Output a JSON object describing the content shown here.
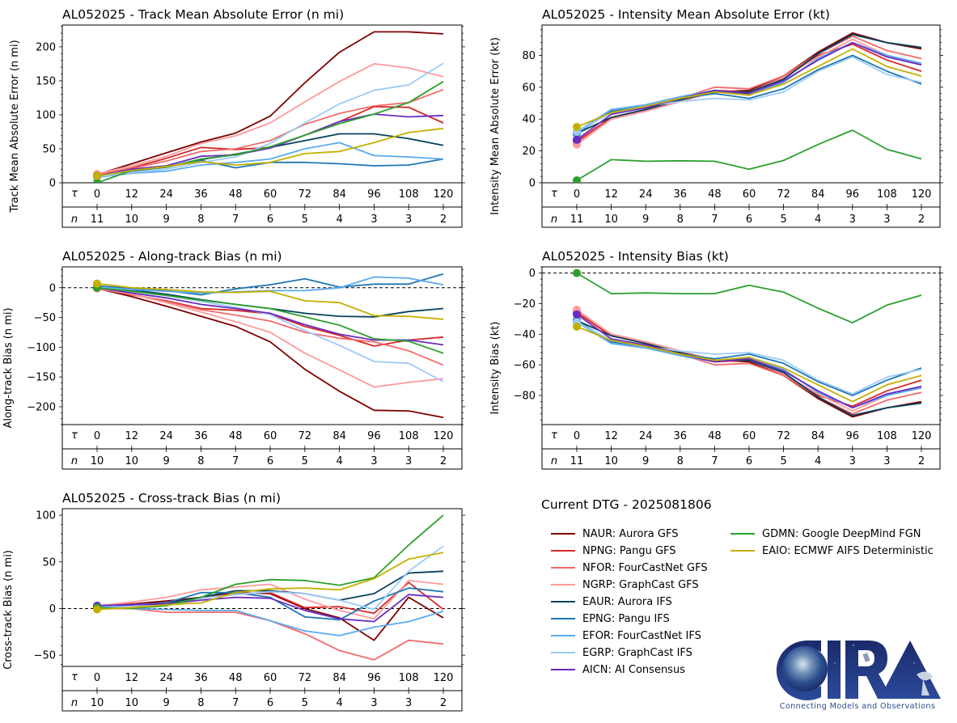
{
  "figure": {
    "storm_id": "AL052025",
    "dtg_label": "Current DTG - 2025081806",
    "tau_symbol": "τ",
    "n_symbol": "n",
    "logo": {
      "name": "CIRA",
      "tagline": "Connecting Models and Observations"
    }
  },
  "models": [
    {
      "id": "NAUR",
      "label": "NAUR: Aurora GFS",
      "color": "#7f0000"
    },
    {
      "id": "NPNG",
      "label": "NPNG: Pangu GFS",
      "color": "#d62728"
    },
    {
      "id": "NFOR",
      "label": "NFOR: FourCastNet GFS",
      "color": "#f26a6a"
    },
    {
      "id": "NGRP",
      "label": "NGRP: GraphCast GFS",
      "color": "#ff9a9a"
    },
    {
      "id": "EAUR",
      "label": "EAUR: Aurora IFS",
      "color": "#08415c"
    },
    {
      "id": "EPNG",
      "label": "EPNG: Pangu IFS",
      "color": "#1f77b4"
    },
    {
      "id": "EFOR",
      "label": "EFOR: FourCastNet IFS",
      "color": "#5aaaf0"
    },
    {
      "id": "EGRP",
      "label": "EGRP: GraphCast IFS",
      "color": "#9ccbfa"
    },
    {
      "id": "AICN",
      "label": "AICN: AI Consensus",
      "color": "#6a2bc2"
    },
    {
      "id": "GDMN",
      "label": "GDMN: Google DeepMind FGN",
      "color": "#2ca02c"
    },
    {
      "id": "EAIO",
      "label": "EAIO: ECMWF AIFS Deterministic",
      "color": "#c4b000"
    }
  ],
  "chart_data": [
    {
      "type": "line",
      "title": "AL052025 - Track Mean Absolute Error (n mi)",
      "xlabel": "τ (h)",
      "ylabel": "Track Mean Absolute Error (n mi)",
      "x": [
        0,
        12,
        24,
        36,
        48,
        60,
        72,
        84,
        96,
        108,
        120
      ],
      "n": [
        11,
        10,
        9,
        8,
        7,
        6,
        5,
        4,
        3,
        3,
        2
      ],
      "ylim": [
        0,
        232
      ],
      "yticks": [
        0,
        50,
        100,
        150,
        200
      ],
      "zero_line": false,
      "series": [
        {
          "name": "NAUR",
          "values": [
            12,
            28,
            44,
            60,
            73,
            98,
            147,
            192,
            222,
            222,
            219
          ]
        },
        {
          "name": "NPNG",
          "values": [
            11,
            22,
            36,
            52,
            49,
            52,
            70,
            90,
            112,
            111,
            88
          ]
        },
        {
          "name": "NFOR",
          "values": [
            12,
            21,
            32,
            46,
            50,
            62,
            86,
            102,
            113,
            118,
            137
          ]
        },
        {
          "name": "NGRP",
          "values": [
            13,
            25,
            39,
            58,
            69,
            88,
            119,
            149,
            175,
            169,
            156
          ]
        },
        {
          "name": "EAUR",
          "values": [
            10,
            18,
            23,
            34,
            42,
            52,
            62,
            72,
            72,
            65,
            55
          ]
        },
        {
          "name": "EPNG",
          "values": [
            9,
            17,
            23,
            33,
            22,
            30,
            30,
            28,
            25,
            26,
            35
          ]
        },
        {
          "name": "EFOR",
          "values": [
            8,
            14,
            17,
            26,
            30,
            35,
            50,
            59,
            40,
            38,
            35
          ]
        },
        {
          "name": "EGRP",
          "values": [
            9,
            15,
            20,
            30,
            38,
            58,
            88,
            116,
            136,
            144,
            176
          ]
        },
        {
          "name": "AICN",
          "values": [
            10,
            20,
            25,
            39,
            41,
            51,
            70,
            90,
            101,
            97,
            99
          ]
        },
        {
          "name": "GDMN",
          "values": [
            0,
            18,
            23,
            35,
            41,
            53,
            70,
            87,
            101,
            118,
            149
          ]
        },
        {
          "name": "EAIO",
          "values": [
            10,
            18,
            24,
            31,
            26,
            30,
            43,
            46,
            59,
            74,
            80
          ]
        }
      ]
    },
    {
      "type": "line",
      "title": "AL052025 - Intensity Mean Absolute Error (kt)",
      "xlabel": "τ (h)",
      "ylabel": "Intensity Mean Absolute Error (kt)",
      "x": [
        0,
        12,
        24,
        36,
        48,
        60,
        72,
        84,
        96,
        108,
        120
      ],
      "n": [
        11,
        10,
        9,
        8,
        7,
        6,
        5,
        4,
        3,
        3,
        2
      ],
      "ylim": [
        0,
        99
      ],
      "yticks": [
        0,
        20,
        40,
        60,
        80
      ],
      "zero_line": false,
      "series": [
        {
          "name": "NAUR",
          "values": [
            25,
            40,
            45,
            51,
            57,
            58,
            67,
            82,
            94,
            88,
            84
          ]
        },
        {
          "name": "NPNG",
          "values": [
            26,
            41,
            46,
            52,
            58,
            57,
            66,
            80,
            87,
            77,
            70
          ]
        },
        {
          "name": "NFOR",
          "values": [
            25,
            40,
            46,
            53,
            60,
            59,
            67,
            81,
            92,
            83,
            78
          ]
        },
        {
          "name": "NGRP",
          "values": [
            24,
            40,
            45,
            51,
            57,
            57,
            66,
            79,
            90,
            80,
            74
          ]
        },
        {
          "name": "EAUR",
          "values": [
            31,
            41,
            46,
            52,
            57,
            57,
            65,
            81,
            93,
            88,
            85
          ]
        },
        {
          "name": "EPNG",
          "values": [
            31,
            45,
            48,
            53,
            56,
            53,
            59,
            71,
            80,
            70,
            62
          ]
        },
        {
          "name": "EFOR",
          "values": [
            32,
            46,
            49,
            54,
            58,
            55,
            63,
            78,
            88,
            80,
            75
          ]
        },
        {
          "name": "EGRP",
          "values": [
            32,
            44,
            48,
            51,
            53,
            52,
            57,
            70,
            79,
            68,
            63
          ]
        },
        {
          "name": "AICN",
          "values": [
            27,
            43,
            47,
            53,
            58,
            56,
            64,
            77,
            88,
            79,
            74
          ]
        },
        {
          "name": "GDMN",
          "values": [
            1.5,
            14.5,
            13.5,
            13.8,
            13.5,
            8.5,
            14,
            24,
            33,
            21,
            15
          ]
        },
        {
          "name": "EAIO",
          "values": [
            35,
            44,
            48,
            53,
            57,
            55,
            62,
            73,
            84,
            73,
            67
          ]
        }
      ]
    },
    {
      "type": "line",
      "title": "AL052025 - Along-track Bias (n mi)",
      "xlabel": "τ (h)",
      "ylabel": "Along-track Bias (n mi)",
      "x": [
        0,
        12,
        24,
        36,
        48,
        60,
        72,
        84,
        96,
        108,
        120
      ],
      "n": [
        10,
        10,
        9,
        8,
        7,
        6,
        5,
        4,
        3,
        3,
        2
      ],
      "ylim": [
        -230,
        35
      ],
      "yticks": [
        -200,
        -150,
        -100,
        -50,
        0
      ],
      "zero_line": true,
      "series": [
        {
          "name": "NAUR",
          "values": [
            -1,
            -15,
            -31,
            -48,
            -65,
            -91,
            -137,
            -174,
            -206,
            -207,
            -218
          ]
        },
        {
          "name": "NPNG",
          "values": [
            -1,
            -12,
            -22,
            -35,
            -38,
            -44,
            -65,
            -80,
            -98,
            -88,
            -83
          ]
        },
        {
          "name": "NFOR",
          "values": [
            -1,
            -11,
            -23,
            -37,
            -46,
            -56,
            -75,
            -85,
            -91,
            -106,
            -130
          ]
        },
        {
          "name": "NGRP",
          "values": [
            -1,
            -11,
            -25,
            -41,
            -57,
            -75,
            -110,
            -138,
            -167,
            -159,
            -153
          ]
        },
        {
          "name": "EAUR",
          "values": [
            2,
            -4,
            -11,
            -20,
            -28,
            -35,
            -43,
            -48,
            -49,
            -40,
            -35
          ]
        },
        {
          "name": "EPNG",
          "values": [
            3,
            -1,
            -5,
            -12,
            -2,
            5,
            15,
            1,
            6,
            6,
            23
          ]
        },
        {
          "name": "EFOR",
          "values": [
            1,
            -3,
            -6,
            -9,
            -7,
            -5,
            -5,
            0,
            18,
            16,
            5
          ]
        },
        {
          "name": "EGRP",
          "values": [
            1,
            -6,
            -13,
            -23,
            -33,
            -45,
            -72,
            -97,
            -124,
            -127,
            -158
          ]
        },
        {
          "name": "AICN",
          "values": [
            0,
            -9,
            -17,
            -28,
            -35,
            -43,
            -62,
            -78,
            -88,
            -88,
            -96
          ]
        },
        {
          "name": "GDMN",
          "values": [
            0,
            -6,
            -13,
            -21,
            -28,
            -35,
            -49,
            -63,
            -86,
            -90,
            -110
          ]
        },
        {
          "name": "EAIO",
          "values": [
            7,
            0,
            -3,
            -7,
            -8,
            -6,
            -22,
            -25,
            -47,
            -48,
            -53
          ]
        }
      ]
    },
    {
      "type": "line",
      "title": "AL052025 - Intensity Bias (kt)",
      "xlabel": "τ (h)",
      "ylabel": "Intensity Bias (kt)",
      "x": [
        0,
        12,
        24,
        36,
        48,
        60,
        72,
        84,
        96,
        108,
        120
      ],
      "n": [
        11,
        10,
        9,
        8,
        7,
        6,
        5,
        4,
        3,
        3,
        2
      ],
      "ylim": [
        -99,
        4
      ],
      "yticks": [
        -80,
        -60,
        -40,
        -20,
        0
      ],
      "zero_line": true,
      "series": [
        {
          "name": "NAUR",
          "values": [
            -25,
            -40,
            -45,
            -51,
            -57,
            -58,
            -67,
            -82,
            -94,
            -88,
            -84
          ]
        },
        {
          "name": "NPNG",
          "values": [
            -26,
            -41,
            -46,
            -52,
            -58,
            -57,
            -66,
            -80,
            -87,
            -77,
            -70
          ]
        },
        {
          "name": "NFOR",
          "values": [
            -25,
            -40,
            -46,
            -53,
            -60,
            -59,
            -67,
            -81,
            -92,
            -83,
            -78
          ]
        },
        {
          "name": "NGRP",
          "values": [
            -24,
            -40,
            -45,
            -51,
            -57,
            -57,
            -66,
            -79,
            -90,
            -80,
            -74
          ]
        },
        {
          "name": "EAUR",
          "values": [
            -31,
            -41,
            -46,
            -52,
            -57,
            -57,
            -65,
            -81,
            -93,
            -88,
            -85
          ]
        },
        {
          "name": "EPNG",
          "values": [
            -31,
            -45,
            -48,
            -53,
            -56,
            -53,
            -59,
            -71,
            -80,
            -70,
            -62
          ]
        },
        {
          "name": "EFOR",
          "values": [
            -32,
            -46,
            -49,
            -54,
            -58,
            -55,
            -63,
            -78,
            -88,
            -80,
            -75
          ]
        },
        {
          "name": "EGRP",
          "values": [
            -32,
            -44,
            -48,
            -51,
            -53,
            -52,
            -57,
            -70,
            -79,
            -68,
            -63
          ]
        },
        {
          "name": "AICN",
          "values": [
            -27,
            -43,
            -47,
            -53,
            -58,
            -56,
            -64,
            -77,
            -88,
            -79,
            -74
          ]
        },
        {
          "name": "GDMN",
          "values": [
            0,
            -13.5,
            -13,
            -13.5,
            -13.5,
            -8,
            -12.5,
            -23,
            -32.5,
            -21,
            -14.5
          ]
        },
        {
          "name": "EAIO",
          "values": [
            -35,
            -44,
            -48,
            -53,
            -57,
            -55,
            -62,
            -73,
            -84,
            -73,
            -67
          ]
        }
      ]
    },
    {
      "type": "line",
      "title": "AL052025 - Cross-track Bias (n mi)",
      "xlabel": "τ (h)",
      "ylabel": "Cross-track Bias (n mi)",
      "x": [
        0,
        12,
        24,
        36,
        48,
        60,
        72,
        84,
        96,
        108,
        120
      ],
      "n": [
        10,
        10,
        9,
        8,
        7,
        6,
        5,
        4,
        3,
        3,
        2
      ],
      "ylim": [
        -62,
        107
      ],
      "yticks": [
        -50,
        0,
        50,
        100
      ],
      "zero_line": true,
      "series": [
        {
          "name": "NAUR",
          "values": [
            2,
            5,
            8,
            12,
            17,
            16,
            0,
            -10,
            -34,
            12,
            -10
          ]
        },
        {
          "name": "NPNG",
          "values": [
            2,
            5,
            6,
            11,
            16,
            17,
            1,
            2,
            -5,
            28,
            -1
          ]
        },
        {
          "name": "NFOR",
          "values": [
            0,
            0,
            -4,
            -4,
            -4,
            -13,
            -27,
            -45,
            -55,
            -34,
            -38
          ]
        },
        {
          "name": "NGRP",
          "values": [
            3,
            7,
            12,
            20,
            23,
            26,
            10,
            -2,
            -11,
            30,
            26
          ]
        },
        {
          "name": "EAUR",
          "values": [
            2,
            4,
            6,
            12,
            19,
            19,
            16,
            9,
            16,
            38,
            40
          ]
        },
        {
          "name": "EPNG",
          "values": [
            3,
            4,
            6,
            17,
            17,
            12,
            -9,
            -12,
            8,
            22,
            18
          ]
        },
        {
          "name": "EFOR",
          "values": [
            1,
            0,
            -1,
            -2,
            -2,
            -13,
            -24,
            -29,
            -20,
            -14,
            -3
          ]
        },
        {
          "name": "EGRP",
          "values": [
            2,
            2,
            4,
            11,
            15,
            18,
            16,
            9,
            -1,
            40,
            67
          ]
        },
        {
          "name": "AICN",
          "values": [
            3,
            4,
            5,
            9,
            12,
            11,
            -2,
            -11,
            -14,
            15,
            12
          ]
        },
        {
          "name": "GDMN",
          "values": [
            1,
            0,
            3,
            12,
            26,
            31,
            30,
            25,
            33,
            68,
            100
          ]
        },
        {
          "name": "EAIO",
          "values": [
            -1,
            1,
            4,
            6,
            17,
            21,
            22,
            20,
            32,
            53,
            60
          ]
        }
      ]
    }
  ]
}
